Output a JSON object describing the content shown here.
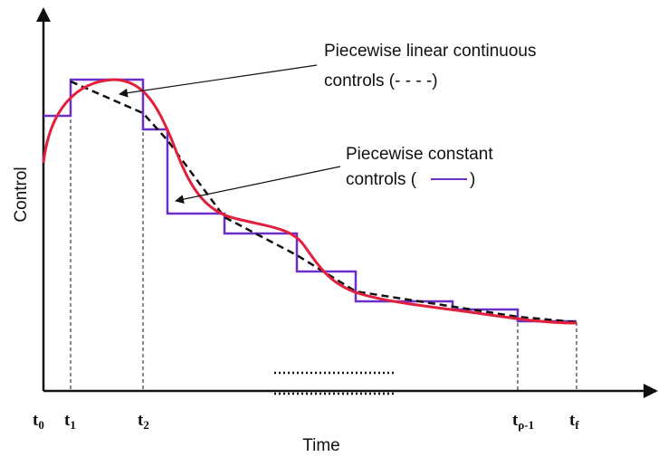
{
  "annotations": [
    {
      "lines": [
        "Piecewise linear continuous",
        "controls (- - - -)"
      ]
    },
    {
      "lines": [
        "Piecewise constant",
        "controls (",
        ")"
      ]
    }
  ],
  "axes": {
    "y_label": "Control",
    "x_label": "Time"
  },
  "ticks": [
    {
      "main": "t",
      "sub": "0"
    },
    {
      "main": "t",
      "sub": "1"
    },
    {
      "main": "t",
      "sub": "2"
    },
    {
      "main": "t",
      "sub": "ρ-1"
    },
    {
      "main": "t",
      "sub": "f"
    }
  ]
}
